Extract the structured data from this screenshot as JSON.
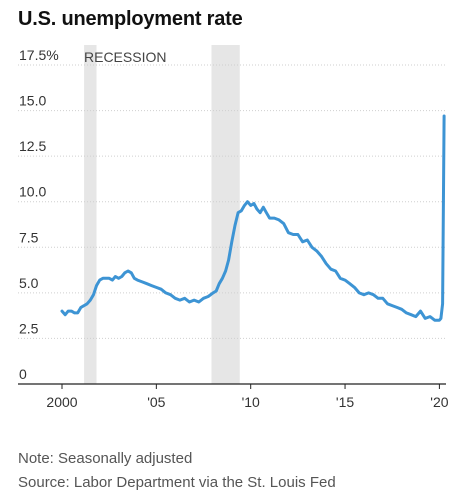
{
  "chart_data": {
    "type": "line",
    "title": "U.S. unemployment rate",
    "recession_label": "RECESSION",
    "xlabel": "",
    "ylabel": "",
    "ylim": [
      0,
      17.5
    ],
    "xlim": [
      2000,
      2020.35
    ],
    "grid": true,
    "y_ticks": [
      0,
      2.5,
      5.0,
      7.5,
      10.0,
      12.5,
      15.0,
      17.5
    ],
    "y_tick_labels": [
      "0",
      "2.5",
      "5.0",
      "7.5",
      "10.0",
      "12.5",
      "15.0",
      "17.5%"
    ],
    "x_ticks": [
      2000,
      2005,
      2010,
      2015,
      2020
    ],
    "x_tick_labels": [
      "2000",
      "'05",
      "'10",
      "'15",
      "'20"
    ],
    "recessions": [
      [
        2001.17,
        2001.83
      ],
      [
        2007.92,
        2009.42
      ]
    ],
    "series": [
      {
        "color": "#3d94d4",
        "x": [
          2000.0,
          2000.17,
          2000.33,
          2000.5,
          2000.67,
          2000.83,
          2001.0,
          2001.17,
          2001.33,
          2001.5,
          2001.67,
          2001.83,
          2002.0,
          2002.17,
          2002.33,
          2002.5,
          2002.67,
          2002.83,
          2003.0,
          2003.17,
          2003.33,
          2003.5,
          2003.67,
          2003.83,
          2004.0,
          2004.25,
          2004.5,
          2004.75,
          2005.0,
          2005.25,
          2005.5,
          2005.75,
          2006.0,
          2006.25,
          2006.5,
          2006.75,
          2007.0,
          2007.25,
          2007.5,
          2007.75,
          2008.0,
          2008.17,
          2008.33,
          2008.5,
          2008.67,
          2008.83,
          2009.0,
          2009.17,
          2009.33,
          2009.5,
          2009.67,
          2009.83,
          2010.0,
          2010.17,
          2010.33,
          2010.5,
          2010.67,
          2010.83,
          2011.0,
          2011.25,
          2011.5,
          2011.75,
          2012.0,
          2012.25,
          2012.5,
          2012.75,
          2013.0,
          2013.25,
          2013.5,
          2013.75,
          2014.0,
          2014.25,
          2014.5,
          2014.75,
          2015.0,
          2015.25,
          2015.5,
          2015.75,
          2016.0,
          2016.25,
          2016.5,
          2016.75,
          2017.0,
          2017.25,
          2017.5,
          2017.75,
          2018.0,
          2018.25,
          2018.5,
          2018.75,
          2019.0,
          2019.25,
          2019.5,
          2019.75,
          2020.0,
          2020.08,
          2020.17,
          2020.25
        ],
        "values": [
          4.0,
          3.8,
          4.0,
          4.0,
          3.9,
          3.9,
          4.2,
          4.3,
          4.4,
          4.6,
          4.9,
          5.4,
          5.7,
          5.8,
          5.8,
          5.8,
          5.7,
          5.9,
          5.8,
          5.9,
          6.1,
          6.2,
          6.1,
          5.8,
          5.7,
          5.6,
          5.5,
          5.4,
          5.3,
          5.2,
          5.0,
          4.9,
          4.7,
          4.6,
          4.7,
          4.5,
          4.6,
          4.5,
          4.7,
          4.8,
          5.0,
          5.1,
          5.5,
          5.8,
          6.2,
          6.8,
          7.8,
          8.7,
          9.4,
          9.5,
          9.8,
          10.0,
          9.8,
          9.9,
          9.6,
          9.4,
          9.7,
          9.4,
          9.1,
          9.1,
          9.0,
          8.8,
          8.3,
          8.2,
          8.2,
          7.8,
          7.9,
          7.5,
          7.3,
          7.0,
          6.6,
          6.3,
          6.2,
          5.8,
          5.7,
          5.5,
          5.3,
          5.0,
          4.9,
          5.0,
          4.9,
          4.7,
          4.7,
          4.4,
          4.3,
          4.2,
          4.1,
          3.9,
          3.8,
          3.7,
          4.0,
          3.6,
          3.7,
          3.5,
          3.5,
          3.6,
          4.4,
          14.7
        ]
      }
    ]
  },
  "footer": {
    "note": "Note: Seasonally adjusted",
    "source": "Source: Labor Department via the St. Louis Fed"
  }
}
